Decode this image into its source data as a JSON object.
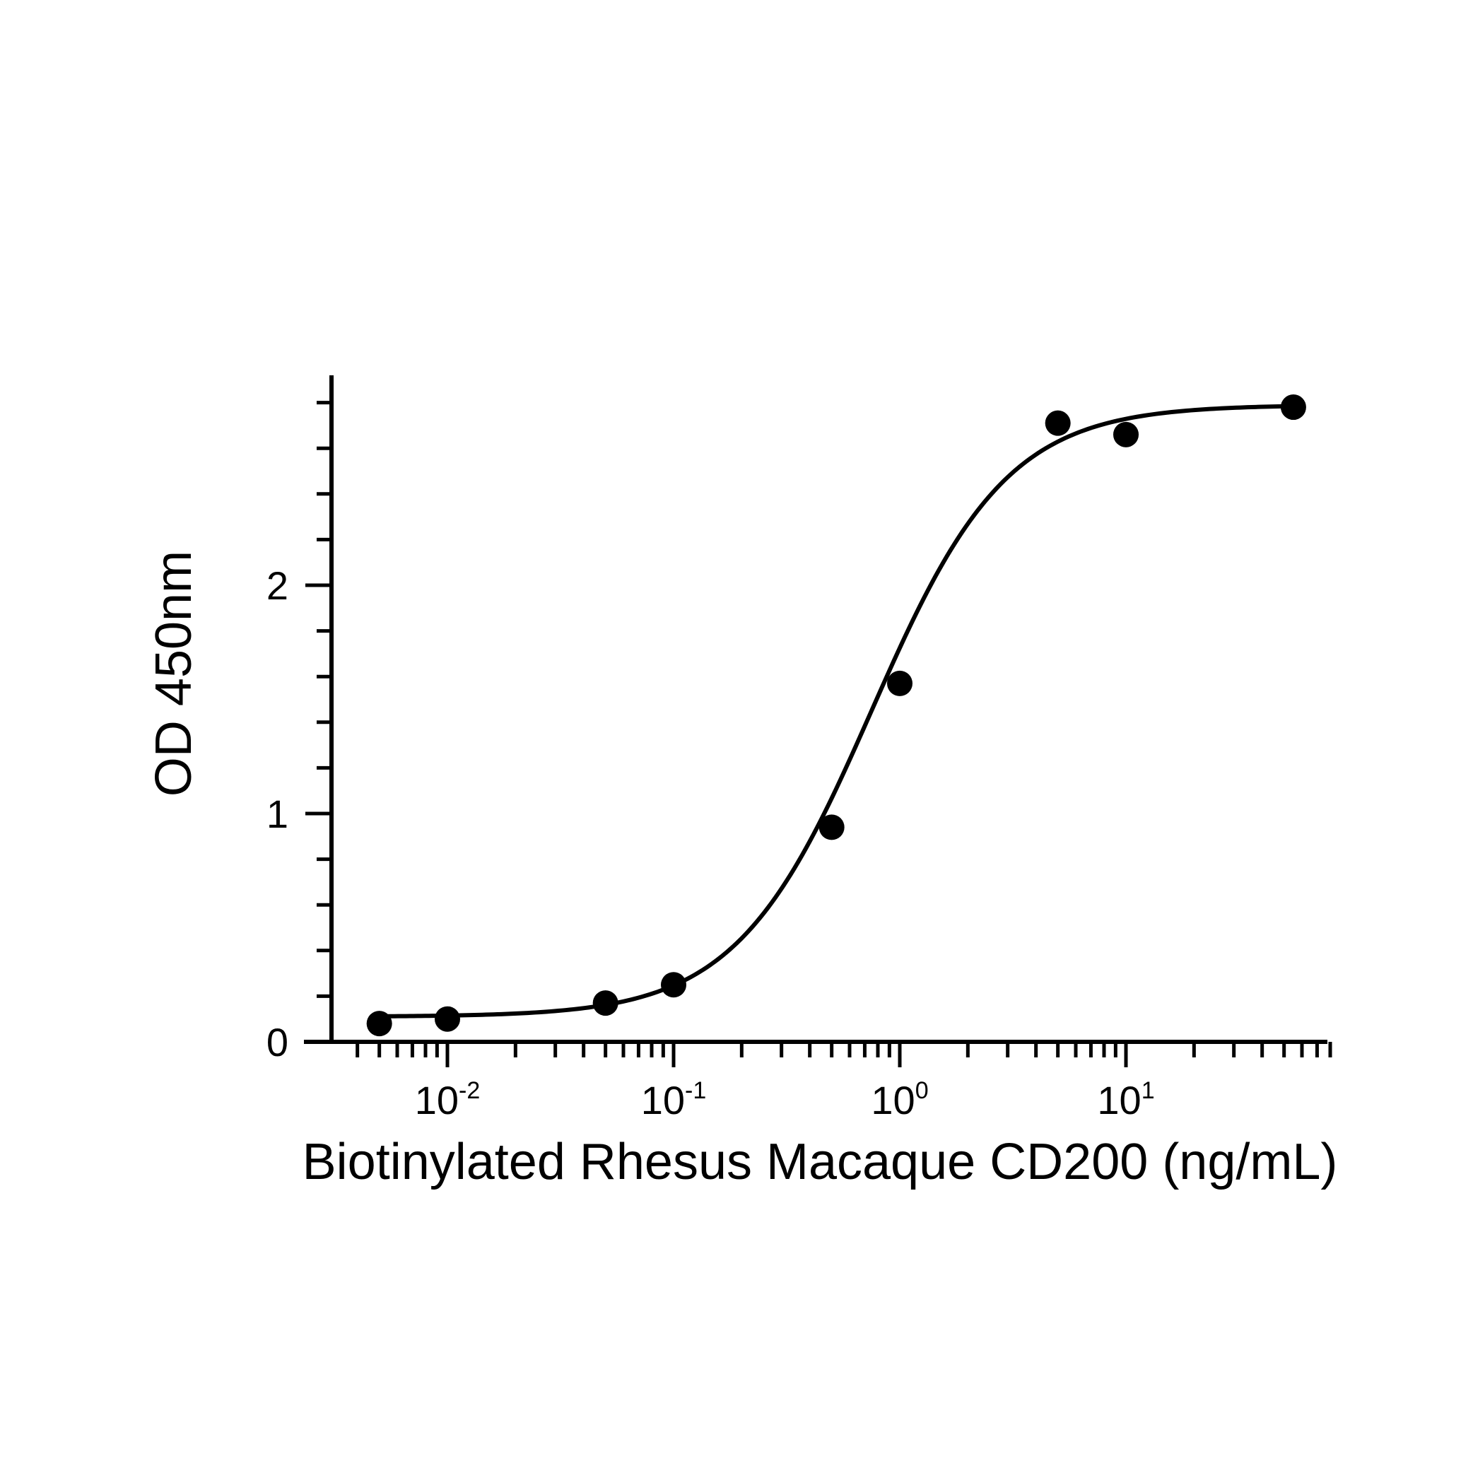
{
  "chart_data": {
    "type": "scatter",
    "xlabel": "Biotinylated Rhesus Macaque CD200 (ng/mL)",
    "ylabel": "OD 450nm",
    "x_scale": "log",
    "xlim": [
      0.0033,
      80
    ],
    "ylim": [
      0,
      2.9
    ],
    "grid": false,
    "legend": "none",
    "y_ticks": [
      {
        "value": 0,
        "label": "0"
      },
      {
        "value": 1,
        "label": "1"
      },
      {
        "value": 2,
        "label": "2"
      }
    ],
    "x_ticks": [
      {
        "value": 0.01,
        "base": "10",
        "exp": "-2"
      },
      {
        "value": 0.1,
        "base": "10",
        "exp": "-1"
      },
      {
        "value": 1,
        "base": "10",
        "exp": "0"
      },
      {
        "value": 10,
        "base": "10",
        "exp": "1"
      }
    ],
    "series": [
      {
        "x": [
          0.005,
          0.01,
          0.05,
          0.1,
          0.5,
          1,
          5,
          10,
          55
        ],
        "y": [
          0.08,
          0.1,
          0.17,
          0.25,
          0.94,
          1.57,
          2.71,
          2.66,
          2.78
        ]
      }
    ],
    "fit_curve": {
      "model": "4PL",
      "bottom": 0.11,
      "top": 2.79,
      "ec50": 0.75,
      "hill": 1.45
    },
    "colors": {
      "points": "#000000",
      "curve": "#000000",
      "axes": "#000000"
    }
  }
}
